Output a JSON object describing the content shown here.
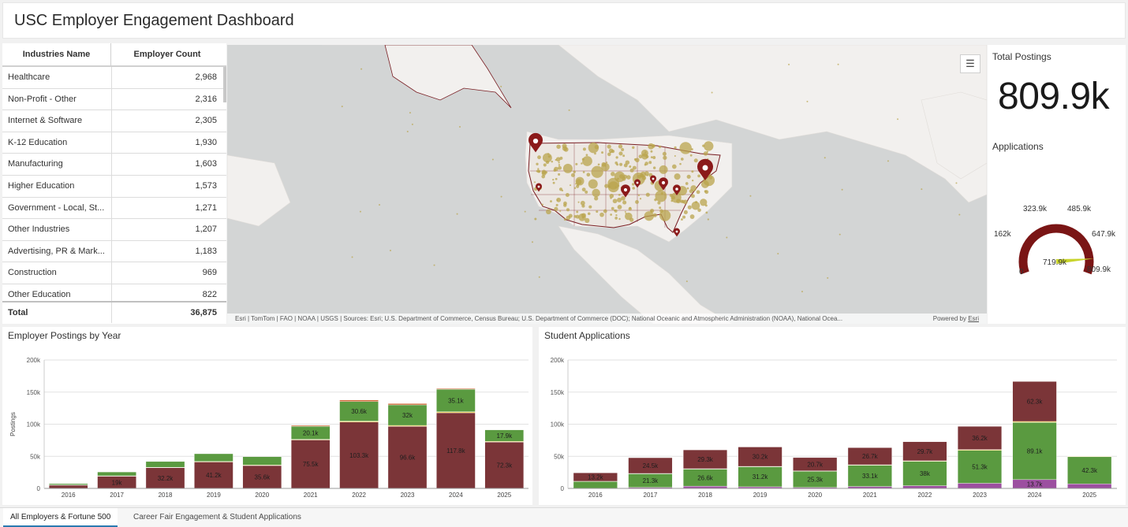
{
  "header": {
    "title": "USC Employer Engagement Dashboard"
  },
  "industries_table": {
    "columns": [
      "Industries Name",
      "Employer Count"
    ],
    "rows": [
      {
        "name": "Healthcare",
        "count": "2,968"
      },
      {
        "name": "Non-Profit - Other",
        "count": "2,316"
      },
      {
        "name": "Internet & Software",
        "count": "2,305"
      },
      {
        "name": "K-12 Education",
        "count": "1,930"
      },
      {
        "name": "Manufacturing",
        "count": "1,603"
      },
      {
        "name": "Higher Education",
        "count": "1,573"
      },
      {
        "name": "Government - Local, St...",
        "count": "1,271"
      },
      {
        "name": "Other Industries",
        "count": "1,207"
      },
      {
        "name": "Advertising, PR & Mark...",
        "count": "1,183"
      },
      {
        "name": "Construction",
        "count": "969"
      },
      {
        "name": "Other Education",
        "count": "822"
      }
    ],
    "total_label": "Total",
    "total_value": "36,875"
  },
  "map": {
    "legend_icon": "legend-list-icon",
    "attribution": "Esri | TomTom | FAO | NOAA | USGS | Sources: Esri; U.S. Department of Commerce, Census Bureau; U.S. Department of Commerce (DOC); National Oceanic and Atmospheric Administration (NOAA), National Ocea...",
    "powered_by": "Powered by",
    "powered_link": "Esri",
    "colors": {
      "water": "#d3d5d5",
      "land": "#f2f0ee",
      "us_fill": "#ece7e2",
      "border": "#7a1f24",
      "point": "#b9a44c",
      "pin": "#8b1a1a"
    }
  },
  "total_postings": {
    "label": "Total Postings",
    "value": "809.9k"
  },
  "applications": {
    "label": "Applications",
    "ticks": [
      "0",
      "162k",
      "323.9k",
      "485.9k",
      "647.9k",
      "809.9k"
    ],
    "value_label": "719.9k",
    "value": 719.9,
    "max": 809.9,
    "colors": {
      "arc": "#7a1515",
      "needle": "#c8d42c"
    }
  },
  "chart_data": [
    {
      "type": "bar",
      "title": "Employer Postings by Year",
      "ylabel": "Postings",
      "stacked": true,
      "categories": [
        "2016",
        "2017",
        "2018",
        "2019",
        "2020",
        "2021",
        "2022",
        "2023",
        "2024",
        "2025"
      ],
      "ylim": [
        0,
        200000
      ],
      "yticks": [
        "0",
        "50k",
        "100k",
        "150k",
        "200k"
      ],
      "series": [
        {
          "color": "#7b3538",
          "values": [
            5000,
            19000,
            32200,
            41200,
            35600,
            75500,
            103300,
            96600,
            117800,
            72300
          ],
          "labels": [
            "",
            "19k",
            "32.2k",
            "41.2k",
            "35.6k",
            "75.5k",
            "103.3k",
            "96.6k",
            "117.8k",
            "72.3k"
          ]
        },
        {
          "color": "#f2d04a",
          "values": [
            400,
            600,
            700,
            800,
            800,
            1000,
            1500,
            1500,
            1600,
            1000
          ],
          "labels": [
            "",
            "",
            "",
            "",
            "",
            "",
            "",
            "",
            "",
            ""
          ]
        },
        {
          "color": "#5a9a40",
          "values": [
            2000,
            6000,
            9000,
            12000,
            13000,
            20100,
            30600,
            32000,
            35100,
            17900
          ],
          "labels": [
            "",
            "",
            "",
            "",
            "",
            "20.1k",
            "30.6k",
            "32k",
            "35.1k",
            "17.9k"
          ]
        },
        {
          "color": "#c9602a",
          "values": [
            0,
            0,
            0,
            0,
            0,
            1500,
            2200,
            2000,
            1200,
            0
          ],
          "labels": [
            "",
            "",
            "",
            "",
            "",
            "",
            "",
            "",
            "",
            ""
          ]
        }
      ],
      "grid": true
    },
    {
      "type": "bar",
      "title": "Student Applications",
      "stacked": true,
      "categories": [
        "2016",
        "2017",
        "2018",
        "2019",
        "2020",
        "2021",
        "2022",
        "2023",
        "2024",
        "2025"
      ],
      "ylim": [
        0,
        200000
      ],
      "yticks": [
        "0",
        "50k",
        "100k",
        "150k",
        "200k"
      ],
      "series": [
        {
          "color": "#9c4fa0",
          "values": [
            300,
            1500,
            3500,
            2500,
            1500,
            3000,
            4200,
            8000,
            13700,
            7000
          ],
          "labels": [
            "",
            "",
            "",
            "",
            "",
            "",
            "",
            "",
            "13.7k",
            ""
          ]
        },
        {
          "color": "#5a9a40",
          "values": [
            10500,
            21300,
            26600,
            31200,
            25300,
            33100,
            38000,
            51300,
            89100,
            42300
          ],
          "labels": [
            "",
            "21.3k",
            "26.6k",
            "31.2k",
            "25.3k",
            "33.1k",
            "38k",
            "51.3k",
            "89.1k",
            "42.3k"
          ]
        },
        {
          "color": "#f2d04a",
          "values": [
            300,
            500,
            600,
            600,
            500,
            700,
            800,
            1200,
            1500,
            800
          ],
          "labels": [
            "",
            "",
            "",
            "",
            "",
            "",
            "",
            "",
            "",
            ""
          ]
        },
        {
          "color": "#7b3538",
          "values": [
            13200,
            24500,
            29300,
            30200,
            20700,
            26700,
            29700,
            36200,
            62300,
            0
          ],
          "labels": [
            "13.2k",
            "24.5k",
            "29.3k",
            "30.2k",
            "20.7k",
            "26.7k",
            "29.7k",
            "36.2k",
            "62.3k",
            ""
          ]
        }
      ],
      "grid": true
    }
  ],
  "tabs": [
    {
      "label": "All Employers & Fortune 500",
      "active": true
    },
    {
      "label": "Career Fair Engagement & Student Applications",
      "active": false
    }
  ]
}
